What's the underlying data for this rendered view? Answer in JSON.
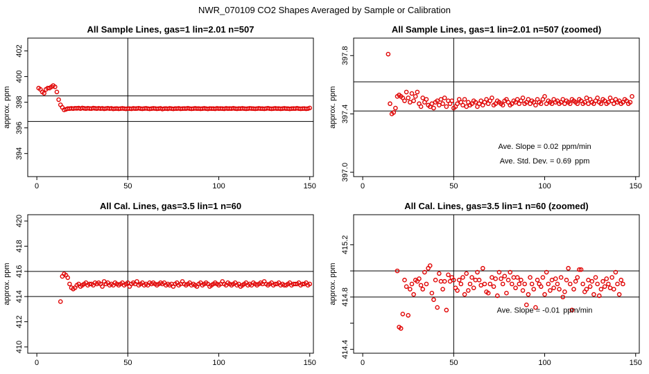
{
  "figure_title": "NWR_070109  CO2 Shapes Averaged by Sample or Calibration",
  "chart_data": [
    {
      "id": "p1",
      "type": "scatter",
      "title": "All Sample Lines, gas=1 lin=2.01 n=507",
      "xlabel": "",
      "ylabel": "approx. ppm",
      "xlim": [
        -5,
        152
      ],
      "ylim": [
        392.2,
        403.0
      ],
      "xticks": [
        0,
        50,
        100,
        150
      ],
      "yticks": [
        394,
        396,
        398,
        400,
        402
      ],
      "hlines": [
        396.5,
        398.5
      ],
      "vlines": [
        50
      ],
      "x_start": 1,
      "x_step": 1,
      "y": [
        399.1,
        399.0,
        398.8,
        398.7,
        399.0,
        399.1,
        399.1,
        399.2,
        399.3,
        399.2,
        398.8,
        398.2,
        397.8,
        397.6,
        397.4,
        397.45,
        397.5,
        397.5,
        397.52,
        397.5,
        397.53,
        397.52,
        397.54,
        397.5,
        397.55,
        397.52,
        397.5,
        397.53,
        397.51,
        397.5,
        397.54,
        397.52,
        397.5,
        397.53,
        397.5,
        397.52,
        397.49,
        397.51,
        397.53,
        397.5,
        397.52,
        397.48,
        397.5,
        397.51,
        397.49,
        397.5,
        397.52,
        397.5,
        397.48,
        397.51,
        397.5,
        397.49,
        397.52,
        397.5,
        397.51,
        397.53,
        397.5,
        397.49,
        397.51,
        397.52,
        397.5,
        397.48,
        397.5,
        397.52,
        397.51,
        397.49,
        397.5,
        397.52,
        397.47,
        397.5,
        397.51,
        397.49,
        397.52,
        397.5,
        397.48,
        397.51,
        397.5,
        397.52,
        397.49,
        397.5,
        397.51,
        397.5,
        397.53,
        397.5,
        397.49,
        397.5,
        397.52,
        397.5,
        397.51,
        397.49,
        397.5,
        397.52,
        397.5,
        397.48,
        397.51,
        397.5,
        397.5,
        397.49,
        397.52,
        397.5,
        397.51,
        397.5,
        397.49,
        397.52,
        397.5,
        397.51,
        397.5,
        397.53,
        397.5,
        397.49,
        397.51,
        397.5,
        397.52,
        397.5,
        397.49,
        397.5,
        397.52,
        397.51,
        397.5,
        397.49,
        397.5,
        397.52,
        397.5,
        397.5,
        397.49,
        397.51,
        397.53,
        397.5,
        397.49,
        397.5,
        397.52,
        397.5,
        397.51,
        397.49,
        397.5,
        397.52,
        397.5,
        397.5,
        397.48,
        397.5,
        397.51,
        397.5,
        397.53,
        397.5,
        397.49,
        397.5,
        397.51,
        397.49,
        397.5,
        397.55
      ],
      "annotations": []
    },
    {
      "id": "p2",
      "type": "scatter",
      "title": "All Sample Lines, gas=1 lin=2.01 n=507 (zoomed)",
      "xlabel": "",
      "ylabel": "approx. ppm",
      "xlim": [
        -5,
        152
      ],
      "ylim": [
        396.97,
        397.92
      ],
      "xticks": [
        0,
        50,
        100,
        150
      ],
      "yticks": [
        397.0,
        397.4,
        397.8
      ],
      "yticklabels": [
        "397.0",
        "397.4",
        "397.8"
      ],
      "hlines": [
        397.42,
        397.62
      ],
      "vlines": [
        50
      ],
      "x_start": 14,
      "x_step": 1,
      "y": [
        397.81,
        397.47,
        397.4,
        397.41,
        397.44,
        397.52,
        397.53,
        397.52,
        397.51,
        397.49,
        397.55,
        397.51,
        397.48,
        397.54,
        397.49,
        397.52,
        397.55,
        397.47,
        397.45,
        397.51,
        397.48,
        397.5,
        397.46,
        397.45,
        397.47,
        397.44,
        397.48,
        397.49,
        397.46,
        397.5,
        397.47,
        397.51,
        397.45,
        397.49,
        397.47,
        397.49,
        397.44,
        397.45,
        397.47,
        397.5,
        397.48,
        397.46,
        397.5,
        397.45,
        397.48,
        397.46,
        397.47,
        397.49,
        397.48,
        397.45,
        397.47,
        397.49,
        397.46,
        397.48,
        397.5,
        397.47,
        397.49,
        397.51,
        397.46,
        397.47,
        397.49,
        397.48,
        397.47,
        397.46,
        397.49,
        397.5,
        397.48,
        397.46,
        397.47,
        397.49,
        397.48,
        397.5,
        397.47,
        397.49,
        397.51,
        397.47,
        397.48,
        397.5,
        397.47,
        397.49,
        397.48,
        397.46,
        397.5,
        397.48,
        397.47,
        397.5,
        397.52,
        397.47,
        397.49,
        397.48,
        397.47,
        397.5,
        397.48,
        397.49,
        397.47,
        397.48,
        397.5,
        397.47,
        397.49,
        397.48,
        397.47,
        397.5,
        397.49,
        397.48,
        397.47,
        397.5,
        397.49,
        397.47,
        397.48,
        397.51,
        397.47,
        397.5,
        397.48,
        397.47,
        397.49,
        397.51,
        397.48,
        397.47,
        397.5,
        397.49,
        397.47,
        397.48,
        397.51,
        397.49,
        397.47,
        397.5,
        397.48,
        397.49,
        397.47,
        397.48,
        397.5,
        397.49,
        397.47,
        397.48,
        397.52
      ],
      "annotations": [
        {
          "id": "p2-slope",
          "x": 100,
          "y": 397.16,
          "label": "Ave. Slope = ",
          "value": "0.02",
          "unit": "ppm/min"
        },
        {
          "id": "p2-std",
          "x": 100,
          "y": 397.06,
          "label": "Ave. Std. Dev. = ",
          "value": "0.69",
          "unit": "ppm"
        }
      ]
    },
    {
      "id": "p3",
      "type": "scatter",
      "title": "All Cal. Lines, gas=3.5 lin=1 n=60",
      "xlabel": "",
      "ylabel": "approx. ppm",
      "xlim": [
        -5,
        152
      ],
      "ylim": [
        409.5,
        420.5
      ],
      "xticks": [
        0,
        50,
        100,
        150
      ],
      "yticks": [
        410,
        412,
        414,
        416,
        418,
        420
      ],
      "hlines": [
        414.0,
        416.0
      ],
      "vlines": [
        50
      ],
      "x_start": 13,
      "x_step": 1,
      "y": [
        413.6,
        415.6,
        415.8,
        415.7,
        415.5,
        415.0,
        414.7,
        414.6,
        414.7,
        414.9,
        415.0,
        414.8,
        414.9,
        415.0,
        415.1,
        414.9,
        415.0,
        415.0,
        414.9,
        415.1,
        415.0,
        415.1,
        415.0,
        414.8,
        415.2,
        415.0,
        415.1,
        414.9,
        415.0,
        414.9,
        415.1,
        415.0,
        414.9,
        415.0,
        415.1,
        414.9,
        415.0,
        415.1,
        414.8,
        415.0,
        415.1,
        415.0,
        415.2,
        414.9,
        415.0,
        415.1,
        414.9,
        415.0,
        414.9,
        415.1,
        415.0,
        415.1,
        415.0,
        414.9,
        415.0,
        415.1,
        415.0,
        415.1,
        414.9,
        415.0,
        414.9,
        415.0,
        414.8,
        415.0,
        415.1,
        414.9,
        415.0,
        415.2,
        415.0,
        414.9,
        415.0,
        415.1,
        414.9,
        415.0,
        414.9,
        414.8,
        415.0,
        415.1,
        414.9,
        415.0,
        415.1,
        415.0,
        414.8,
        414.9,
        415.0,
        415.1,
        415.0,
        414.9,
        415.0,
        415.2,
        415.0,
        414.9,
        415.1,
        415.0,
        414.9,
        415.0,
        415.1,
        414.9,
        415.0,
        414.8,
        414.9,
        415.0,
        415.1,
        414.9,
        415.0,
        414.9,
        415.1,
        415.0,
        414.9,
        415.0,
        415.1,
        415.0,
        415.2,
        415.0,
        414.9,
        415.0,
        415.1,
        414.9,
        415.0,
        415.0,
        415.1,
        414.9,
        415.0,
        414.9,
        414.9,
        415.0,
        415.1,
        414.9,
        415.0,
        415.0,
        415.0,
        415.1,
        414.9,
        415.0,
        415.0,
        415.1,
        414.9,
        415.0
      ],
      "annotations": []
    },
    {
      "id": "p4",
      "type": "scatter",
      "title": "All Cal. Lines, gas=3.5 lin=1 n=60 (zoomed)",
      "xlabel": "",
      "ylabel": "approx. ppm",
      "xlim": [
        -5,
        152
      ],
      "ylim": [
        414.37,
        415.43
      ],
      "xticks": [
        0,
        50,
        100,
        150
      ],
      "yticks": [
        414.4,
        414.6,
        414.8,
        415.0,
        415.2
      ],
      "yticklabels": [
        "414.4",
        "",
        "414.8",
        "",
        "415.2"
      ],
      "hlines": [
        414.8,
        415.0
      ],
      "vlines": [
        50
      ],
      "x_start": 19,
      "x_step": 1,
      "y": [
        415.0,
        414.57,
        414.56,
        414.67,
        414.93,
        414.88,
        414.66,
        414.86,
        414.9,
        414.82,
        414.93,
        414.92,
        414.94,
        414.89,
        414.86,
        414.99,
        414.9,
        415.02,
        415.04,
        414.83,
        414.78,
        414.93,
        414.72,
        414.98,
        414.92,
        414.86,
        414.92,
        414.7,
        414.97,
        414.92,
        414.95,
        414.93,
        414.87,
        414.85,
        414.93,
        414.9,
        414.95,
        414.82,
        414.98,
        414.85,
        414.9,
        414.95,
        414.87,
        414.93,
        414.99,
        414.93,
        414.89,
        415.02,
        414.9,
        414.84,
        414.83,
        414.9,
        414.95,
        414.88,
        414.94,
        414.81,
        414.99,
        414.94,
        414.9,
        414.96,
        414.83,
        414.93,
        414.99,
        414.9,
        414.95,
        414.87,
        414.95,
        414.9,
        414.93,
        414.85,
        414.9,
        414.74,
        414.82,
        414.95,
        414.9,
        414.86,
        414.72,
        414.93,
        414.9,
        414.88,
        414.95,
        414.82,
        414.99,
        414.9,
        414.85,
        414.93,
        414.87,
        414.94,
        414.9,
        414.86,
        414.95,
        414.8,
        414.84,
        414.93,
        415.02,
        414.9,
        414.7,
        414.86,
        414.92,
        414.95,
        415.01,
        415.01,
        414.9,
        414.84,
        414.86,
        414.93,
        414.88,
        414.92,
        414.82,
        414.95,
        414.9,
        414.81,
        414.86,
        414.92,
        414.88,
        414.94,
        414.9,
        414.87,
        414.95,
        414.86,
        414.99,
        414.9,
        414.82,
        414.93,
        414.9
      ],
      "annotations": [
        {
          "id": "p4-slope",
          "x": 100,
          "y": 414.68,
          "label": "Ave. Slope = ",
          "value": "-0.01",
          "unit": "ppm/min"
        }
      ]
    }
  ]
}
